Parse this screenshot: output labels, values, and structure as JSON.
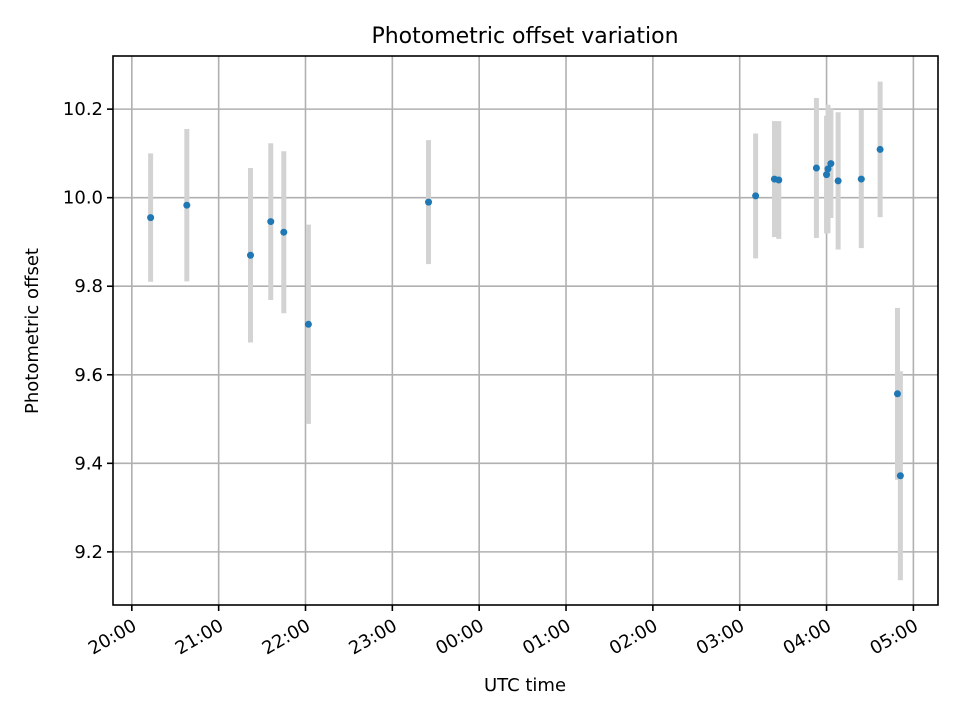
{
  "chart_data": {
    "type": "scatter",
    "title": "Photometric offset variation",
    "xlabel": "UTC time",
    "ylabel": "Photometric offset",
    "xlim": [
      "2000-01-01T19:47",
      "2000-01-02T05:17"
    ],
    "ylim": [
      9.08,
      10.32
    ],
    "x_ticks": [
      "20:00",
      "21:00",
      "22:00",
      "23:00",
      "00:00",
      "01:00",
      "02:00",
      "03:00",
      "04:00",
      "05:00"
    ],
    "x_tick_values": [
      "2000-01-01T20:00",
      "2000-01-01T21:00",
      "2000-01-01T22:00",
      "2000-01-01T23:00",
      "2000-01-02T00:00",
      "2000-01-02T01:00",
      "2000-01-02T02:00",
      "2000-01-02T03:00",
      "2000-01-02T04:00",
      "2000-01-02T05:00"
    ],
    "y_ticks": [
      "9.2",
      "9.4",
      "9.6",
      "9.8",
      "10.0",
      "10.2"
    ],
    "y_tick_values": [
      9.2,
      9.4,
      9.6,
      9.8,
      10.0,
      10.2
    ],
    "grid": true,
    "colors": {
      "points": "#1f77b4",
      "errorbars": "#d3d3d3",
      "grid": "#b0b0b0"
    },
    "points": [
      {
        "x": "2000-01-01T20:13",
        "y": 9.955,
        "err": 0.145
      },
      {
        "x": "2000-01-01T20:38",
        "y": 9.983,
        "err": 0.172
      },
      {
        "x": "2000-01-01T21:22",
        "y": 9.87,
        "err": 0.197
      },
      {
        "x": "2000-01-01T21:36",
        "y": 9.946,
        "err": 0.177
      },
      {
        "x": "2000-01-01T21:45",
        "y": 9.922,
        "err": 0.183
      },
      {
        "x": "2000-01-01T22:02",
        "y": 9.714,
        "err": 0.225
      },
      {
        "x": "2000-01-01T23:25",
        "y": 9.99,
        "err": 0.14
      },
      {
        "x": "2000-01-02T03:11",
        "y": 10.004,
        "err": 0.141
      },
      {
        "x": "2000-01-02T03:24",
        "y": 10.042,
        "err": 0.131
      },
      {
        "x": "2000-01-02T03:27",
        "y": 10.04,
        "err": 0.133
      },
      {
        "x": "2000-01-02T03:53",
        "y": 10.067,
        "err": 0.158
      },
      {
        "x": "2000-01-02T04:00",
        "y": 10.052,
        "err": 0.133
      },
      {
        "x": "2000-01-02T04:01",
        "y": 10.065,
        "err": 0.145
      },
      {
        "x": "2000-01-02T04:03",
        "y": 10.077,
        "err": 0.123
      },
      {
        "x": "2000-01-02T04:08",
        "y": 10.038,
        "err": 0.155
      },
      {
        "x": "2000-01-02T04:24",
        "y": 10.042,
        "err": 0.156
      },
      {
        "x": "2000-01-02T04:37",
        "y": 10.109,
        "err": 0.153
      },
      {
        "x": "2000-01-02T04:49",
        "y": 9.557,
        "err": 0.194
      },
      {
        "x": "2000-01-02T04:51",
        "y": 9.372,
        "err": 0.236
      }
    ]
  }
}
